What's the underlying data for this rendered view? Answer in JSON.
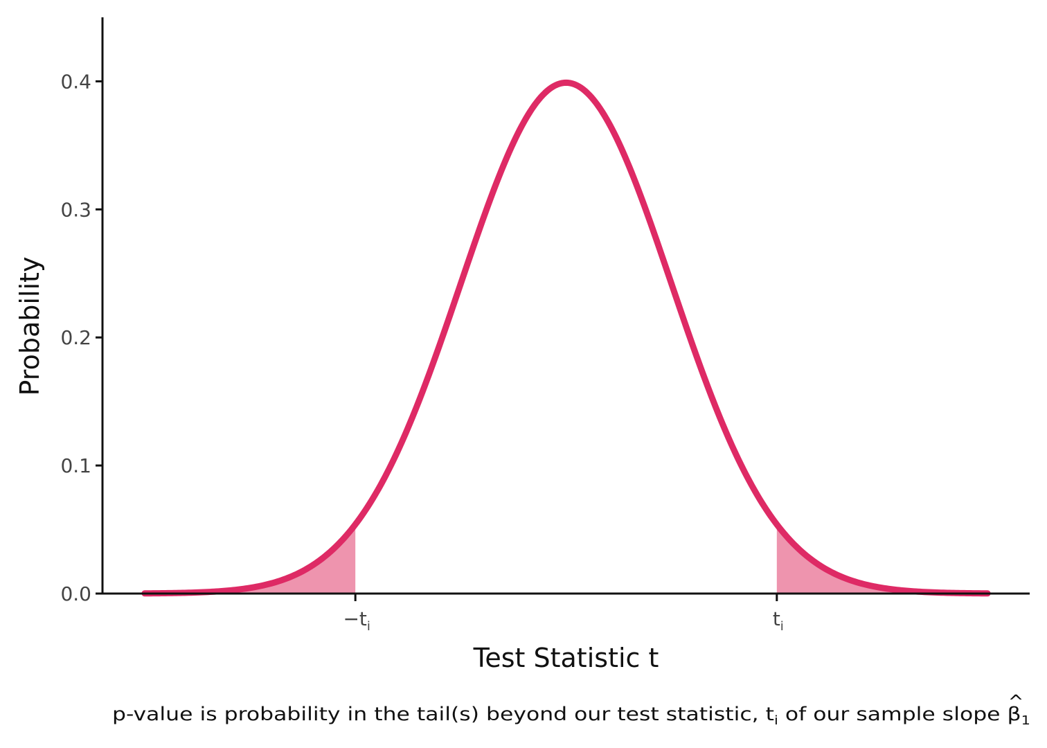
{
  "chart_data": {
    "type": "area",
    "distribution": "standard normal density",
    "x_range": [
      -4,
      4
    ],
    "critical_value": 2.0,
    "series": [
      {
        "curve": "density",
        "color": "#DE2A65"
      }
    ],
    "shaded_tails": {
      "left": {
        "from": -4,
        "to": -2.0
      },
      "right": {
        "from": 2.0,
        "to": 4
      },
      "color": "#EE94AE"
    },
    "xlim": [
      -4.4,
      4.4
    ],
    "ylim": [
      0,
      0.45
    ],
    "y_ticks": [
      0.0,
      0.1,
      0.2,
      0.3,
      0.4
    ],
    "y_tick_labels": [
      "0.0",
      "0.1",
      "0.2",
      "0.3",
      "0.4"
    ],
    "x_ticks": [
      -2.0,
      2.0
    ],
    "x_tick_labels": [
      {
        "main": "−t",
        "sub": "i"
      },
      {
        "main": "t",
        "sub": "i"
      }
    ],
    "xlabel": "Test Statistic t",
    "ylabel": "Probability",
    "caption": {
      "before": "p-value is probability in the tail(s) beyond our test statistic, t",
      "sub1": "i",
      "middle": " of our sample slope ",
      "beta": "β",
      "hat": "^",
      "sub2": "1"
    },
    "grid": false,
    "axis_color": "#111111"
  }
}
